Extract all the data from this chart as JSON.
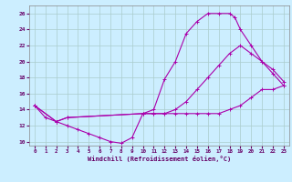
{
  "xlabel": "Windchill (Refroidissement éolien,°C)",
  "bg_color": "#cceeff",
  "line_color": "#aa00aa",
  "grid_color": "#aacccc",
  "xlim": [
    -0.5,
    23.5
  ],
  "ylim": [
    9.5,
    27
  ],
  "xticks": [
    0,
    1,
    2,
    3,
    4,
    5,
    6,
    7,
    8,
    9,
    10,
    11,
    12,
    13,
    14,
    15,
    16,
    17,
    18,
    19,
    20,
    21,
    22,
    23
  ],
  "yticks": [
    10,
    12,
    14,
    16,
    18,
    20,
    22,
    24,
    26
  ],
  "line1_x": [
    0,
    1,
    2,
    3,
    4,
    5,
    6,
    7,
    8,
    9,
    10,
    11,
    12,
    13,
    14,
    15,
    16,
    17,
    18,
    19,
    20,
    21,
    22,
    23
  ],
  "line1_y": [
    14.5,
    13.0,
    12.5,
    12.0,
    11.5,
    11.0,
    10.5,
    10.0,
    9.8,
    10.5,
    13.5,
    13.5,
    13.5,
    13.5,
    13.5,
    13.5,
    13.5,
    13.5,
    14.0,
    14.5,
    15.5,
    16.5,
    16.5,
    17.0
  ],
  "line2_x": [
    0,
    2,
    3,
    10,
    11,
    12,
    13,
    14,
    15,
    16,
    17,
    18,
    18.5,
    19,
    20,
    21,
    22,
    23
  ],
  "line2_y": [
    14.5,
    12.5,
    13.0,
    13.5,
    14.0,
    17.8,
    20.0,
    23.5,
    25.0,
    26.0,
    26.0,
    26.0,
    25.5,
    24.0,
    22.0,
    20.0,
    18.5,
    17.0
  ],
  "line3_x": [
    0,
    2,
    3,
    10,
    11,
    12,
    13,
    14,
    15,
    16,
    17,
    18,
    19,
    20,
    21,
    22,
    23
  ],
  "line3_y": [
    14.5,
    12.5,
    13.0,
    13.5,
    13.5,
    13.5,
    14.0,
    15.0,
    16.5,
    18.0,
    19.5,
    21.0,
    22.0,
    21.0,
    20.0,
    19.0,
    17.5
  ]
}
